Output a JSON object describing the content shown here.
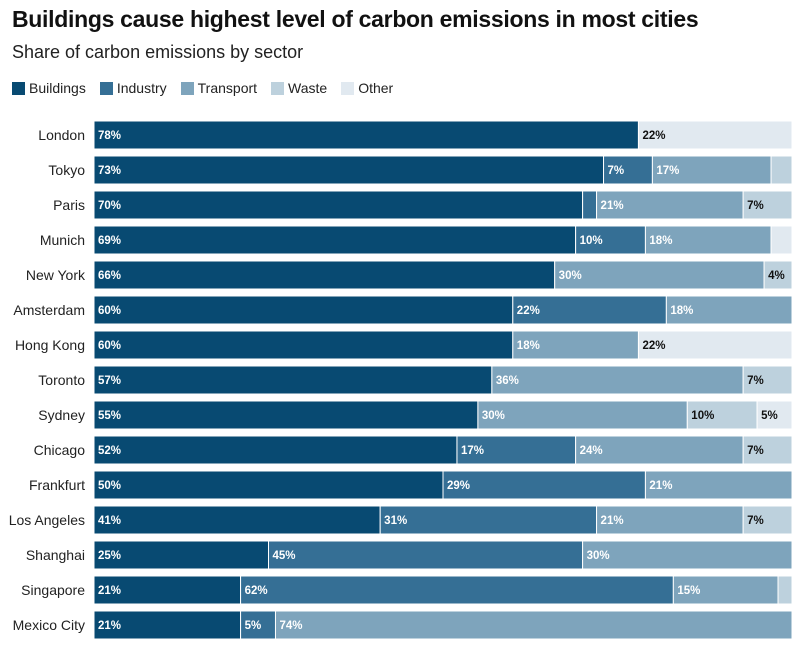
{
  "title": "Buildings cause highest level of carbon emissions in most cities",
  "subtitle": "Share of carbon emissions by sector",
  "colors": {
    "Buildings": "#084a72",
    "Industry": "#356f95",
    "Transport": "#7ea4bc",
    "Waste": "#bdd1dd",
    "Other": "#e1e9f0"
  },
  "chart_data": {
    "type": "bar",
    "orientation": "horizontal",
    "stacked": true,
    "title": "Buildings cause highest level of carbon emissions in most cities",
    "subtitle": "Share of carbon emissions by sector",
    "xlabel": "",
    "ylabel": "",
    "xlim": [
      0,
      100
    ],
    "grid": false,
    "legend": "top-left",
    "categories": [
      "London",
      "Tokyo",
      "Paris",
      "Munich",
      "New York",
      "Amsterdam",
      "Hong Kong",
      "Toronto",
      "Sydney",
      "Chicago",
      "Frankfurt",
      "Los Angeles",
      "Shanghai",
      "Singapore",
      "Mexico City"
    ],
    "series": [
      {
        "name": "Buildings",
        "values": [
          78,
          73,
          70,
          69,
          66,
          60,
          60,
          57,
          55,
          52,
          50,
          41,
          25,
          21,
          21
        ],
        "labels": [
          "78%",
          "73%",
          "70%",
          "69%",
          "66%",
          "60%",
          "60%",
          "57%",
          "55%",
          "52%",
          "50%",
          "41%",
          "25%",
          "21%",
          "21%"
        ]
      },
      {
        "name": "Industry",
        "values": [
          0,
          7,
          2,
          10,
          0,
          22,
          0,
          0,
          0,
          17,
          29,
          31,
          45,
          62,
          5
        ],
        "labels": [
          "",
          "7%",
          "",
          "10%",
          "",
          "22%",
          "",
          "",
          "",
          "17%",
          "29%",
          "31%",
          "45%",
          "62%",
          "5%"
        ]
      },
      {
        "name": "Transport",
        "values": [
          0,
          17,
          21,
          18,
          30,
          18,
          18,
          36,
          30,
          24,
          21,
          21,
          30,
          15,
          74
        ],
        "labels": [
          "",
          "17%",
          "21%",
          "18%",
          "30%",
          "18%",
          "18%",
          "36%",
          "30%",
          "24%",
          "21%",
          "21%",
          "30%",
          "15%",
          "74%"
        ]
      },
      {
        "name": "Waste",
        "values": [
          0,
          3,
          7,
          0,
          4,
          0,
          0,
          7,
          10,
          7,
          0,
          7,
          0,
          2,
          0
        ],
        "labels": [
          "",
          "",
          "7%",
          "",
          "4%",
          "",
          "",
          "7%",
          "10%",
          "7%",
          "",
          "7%",
          "",
          "",
          ""
        ]
      },
      {
        "name": "Other",
        "values": [
          22,
          0,
          0,
          3,
          0,
          0,
          22,
          0,
          5,
          0,
          0,
          0,
          0,
          0,
          0
        ],
        "labels": [
          "22%",
          "",
          "",
          "",
          "",
          "",
          "22%",
          "",
          "5%",
          "",
          "",
          "",
          "",
          "",
          ""
        ]
      }
    ]
  }
}
